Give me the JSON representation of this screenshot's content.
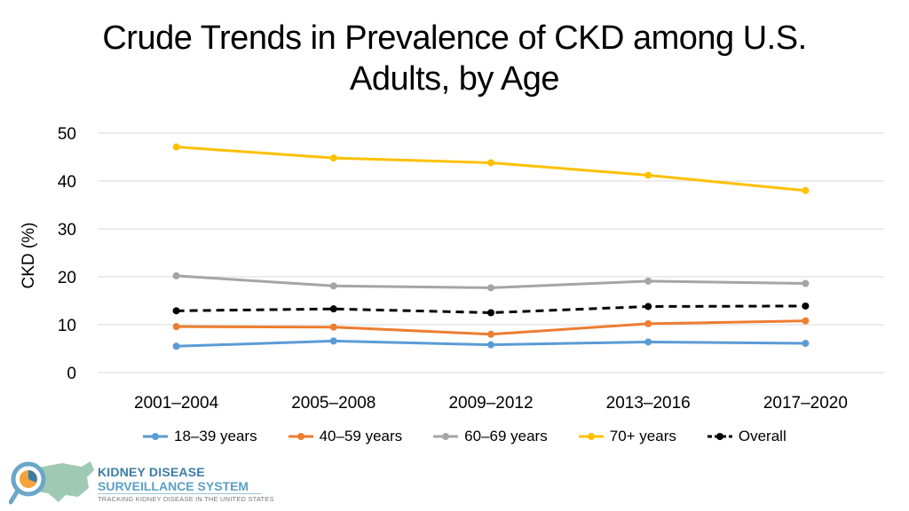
{
  "title_lines": [
    "Crude Trends in Prevalence of CKD among U.S.",
    "Adults, by Age"
  ],
  "chart_data": {
    "type": "line",
    "title": "Crude Trends in Prevalence of CKD among U.S. Adults, by Age",
    "xlabel": "",
    "ylabel": "CKD (%)",
    "ylim": [
      0,
      50
    ],
    "yticks": [
      0,
      10,
      20,
      30,
      40,
      50
    ],
    "grid": true,
    "legend_position": "bottom",
    "categories": [
      "2001–2004",
      "2005–2008",
      "2009–2012",
      "2013–2016",
      "2017–2020"
    ],
    "series": [
      {
        "name": "18–39 years",
        "color": "#5b9bd5",
        "dashed": false,
        "values": [
          5.5,
          6.6,
          5.8,
          6.4,
          6.1
        ]
      },
      {
        "name": "40–59 years",
        "color": "#ed7d31",
        "dashed": false,
        "values": [
          9.6,
          9.5,
          8.0,
          10.2,
          10.8
        ]
      },
      {
        "name": "60–69 years",
        "color": "#a5a5a5",
        "dashed": false,
        "values": [
          20.2,
          18.1,
          17.7,
          19.1,
          18.6
        ]
      },
      {
        "name": "70+ years",
        "color": "#ffc000",
        "dashed": false,
        "values": [
          47.1,
          44.8,
          43.8,
          41.2,
          38.0
        ]
      },
      {
        "name": "Overall",
        "color": "#000000",
        "dashed": true,
        "values": [
          12.9,
          13.3,
          12.5,
          13.8,
          13.9
        ]
      }
    ]
  },
  "logo": {
    "line1": "KIDNEY DISEASE",
    "line2": "SURVEILLANCE SYSTEM",
    "tagline": "TRACKING KIDNEY DISEASE IN THE UNITED STATES"
  }
}
